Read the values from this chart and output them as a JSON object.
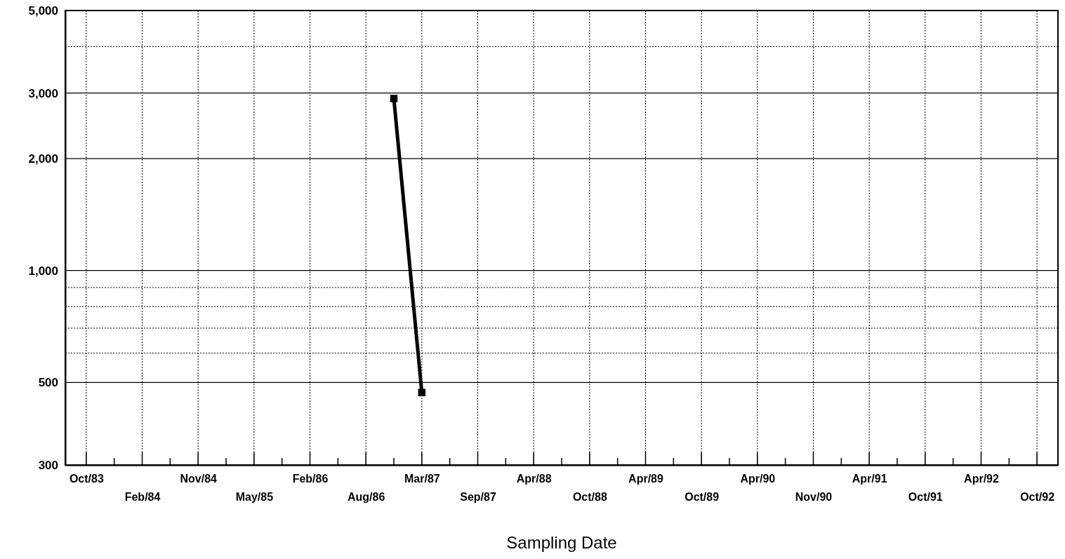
{
  "chart_data": {
    "type": "line",
    "xlabel": "Sampling Date",
    "categories": [
      "Oct/83",
      null,
      "Feb/84",
      null,
      "Nov/84",
      null,
      "May/85",
      null,
      "Feb/86",
      null,
      "Aug/86",
      null,
      "Mar/87",
      null,
      "Sep/87",
      null,
      "Apr/88",
      null,
      "Oct/88",
      null,
      "Apr/89",
      null,
      "Oct/89",
      null,
      "Apr/90",
      null,
      "Nov/90",
      null,
      "Apr/91",
      null,
      "Oct/91",
      null,
      "Apr/92",
      null,
      "Oct/92"
    ],
    "series": [
      {
        "color": "#000000",
        "values": [
          null,
          null,
          null,
          null,
          null,
          null,
          null,
          null,
          null,
          null,
          null,
          2900,
          470,
          null,
          null,
          null,
          null,
          null,
          null,
          null,
          null,
          null,
          null,
          null,
          null,
          null,
          null,
          null,
          null,
          null,
          null,
          null,
          null,
          null,
          null
        ]
      }
    ],
    "log": true,
    "ylim": [
      300,
      5000
    ],
    "yticks": [
      300,
      500,
      {
        "value": 600,
        "label": null
      },
      {
        "value": 700,
        "label": null
      },
      {
        "value": 800,
        "label": null
      },
      {
        "value": 900,
        "label": null
      },
      {
        "value": 1000,
        "label": "1,000"
      },
      {
        "value": 2000,
        "label": "2,000"
      },
      {
        "value": 3000,
        "label": "3,000"
      },
      {
        "value": 4000,
        "label": null
      },
      {
        "value": 5000,
        "label": "5,000"
      }
    ],
    "grid": true,
    "marker": "square",
    "line_style": "solid"
  }
}
